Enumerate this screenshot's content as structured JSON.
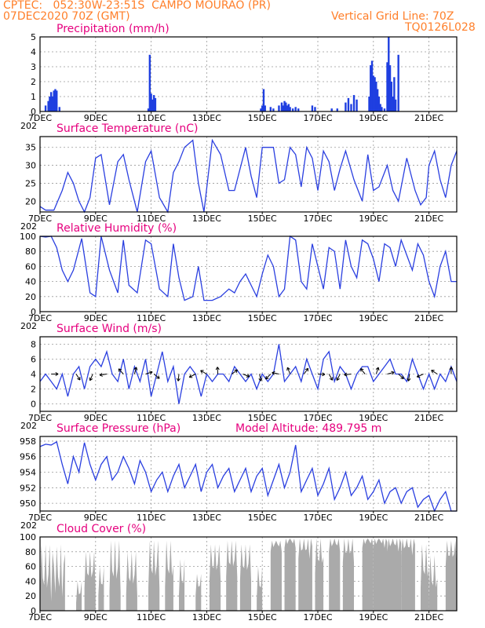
{
  "header": {
    "line1": "CPTEC:   052:30W-23:51S  CAMPO MOURAO (PR)",
    "line2_left": "07DEC2020 70Z (GMT)",
    "line2_right": "Vertical Grid Line: 70Z",
    "line3_right": "TQ0126L028"
  },
  "x_axis": {
    "labels": [
      "7DEC",
      "9DEC",
      "11DEC",
      "13DEC",
      "15DEC",
      "17DEC",
      "19DEC",
      "21DEC"
    ],
    "year_fragment": "202"
  },
  "chart_data": [
    {
      "type": "bar",
      "title": "Precipitation (mm/h)",
      "ylim": [
        0,
        5
      ],
      "yticks": [
        0,
        1,
        2,
        3,
        4,
        5
      ],
      "color": "#1f3fe0",
      "days": [
        7,
        22
      ],
      "x": [
        7.2,
        7.3,
        7.35,
        7.4,
        7.45,
        7.5,
        7.55,
        7.6,
        7.7,
        10.9,
        10.95,
        11.0,
        11.05,
        11.1,
        11.15,
        14.95,
        15.0,
        15.05,
        15.1,
        15.3,
        15.4,
        15.6,
        15.7,
        15.75,
        15.8,
        15.85,
        15.9,
        15.95,
        16.0,
        16.1,
        16.2,
        16.3,
        16.8,
        16.9,
        17.5,
        17.7,
        18.0,
        18.1,
        18.2,
        18.3,
        18.4,
        18.85,
        18.9,
        18.95,
        19.0,
        19.05,
        19.1,
        19.15,
        19.2,
        19.25,
        19.3,
        19.4,
        19.5,
        19.55,
        19.6,
        19.65,
        19.7,
        19.75,
        19.8,
        19.9
      ],
      "values": [
        0.4,
        0.7,
        1.0,
        1.3,
        1.0,
        1.4,
        1.5,
        1.4,
        0.3,
        0.2,
        3.8,
        1.2,
        0.8,
        1.1,
        0.9,
        0.2,
        0.4,
        1.5,
        0.4,
        0.3,
        0.2,
        0.4,
        0.6,
        0.4,
        0.7,
        0.6,
        0.4,
        0.5,
        0.3,
        0.2,
        0.3,
        0.2,
        0.4,
        0.3,
        0.2,
        0.2,
        0.6,
        0.9,
        0.5,
        1.1,
        0.8,
        1.0,
        3.1,
        3.4,
        2.4,
        2.3,
        2.0,
        1.5,
        1.0,
        0.5,
        0.3,
        0.2,
        3.3,
        5.0,
        3.1,
        2.0,
        1.0,
        2.3,
        0.8,
        3.8
      ]
    },
    {
      "type": "line",
      "title": "Surface Temperature (nC)",
      "ylim": [
        17,
        38
      ],
      "yticks": [
        20,
        25,
        30,
        35
      ],
      "color": "#2a3fe0",
      "x": [
        7.0,
        7.2,
        7.5,
        7.8,
        8.0,
        8.2,
        8.4,
        8.6,
        8.8,
        9.0,
        9.2,
        9.5,
        9.8,
        10.0,
        10.2,
        10.5,
        10.8,
        11.0,
        11.3,
        11.6,
        11.8,
        12.0,
        12.2,
        12.5,
        12.7,
        12.9,
        13.2,
        13.5,
        13.8,
        14.0,
        14.2,
        14.4,
        14.6,
        14.8,
        15.0,
        15.2,
        15.4,
        15.6,
        15.8,
        16.0,
        16.2,
        16.4,
        16.6,
        16.8,
        17.0,
        17.2,
        17.4,
        17.6,
        17.8,
        18.0,
        18.3,
        18.6,
        18.8,
        19.0,
        19.2,
        19.5,
        19.7,
        19.9,
        20.2,
        20.5,
        20.7,
        20.9,
        21.0,
        21.2,
        21.4,
        21.6,
        21.8,
        22.0
      ],
      "values": [
        18.5,
        17.5,
        17.5,
        23,
        28,
        25,
        20,
        17,
        21,
        32,
        33,
        19,
        31,
        33,
        26,
        17,
        31,
        34,
        21,
        17,
        28,
        31,
        35,
        37,
        25,
        17,
        37,
        33,
        23,
        23,
        29,
        35,
        27,
        21,
        35,
        35,
        35,
        25,
        26,
        35,
        33,
        24,
        35,
        32,
        23,
        34,
        31,
        23,
        29,
        34,
        26,
        20,
        33,
        23,
        24,
        30,
        23,
        20,
        32,
        23,
        19,
        21,
        30,
        34,
        26,
        21,
        30,
        34
      ]
    },
    {
      "type": "line",
      "title": "Relative Humidity (%)",
      "ylim": [
        0,
        100
      ],
      "yticks": [
        0,
        20,
        40,
        60,
        80,
        100
      ],
      "color": "#2a3fe0",
      "x": [
        7.0,
        7.2,
        7.4,
        7.6,
        7.8,
        8.0,
        8.2,
        8.5,
        8.8,
        9.0,
        9.2,
        9.5,
        9.8,
        10.0,
        10.2,
        10.5,
        10.8,
        11.0,
        11.3,
        11.6,
        11.8,
        12.0,
        12.2,
        12.5,
        12.7,
        12.9,
        13.2,
        13.5,
        13.8,
        14.0,
        14.2,
        14.4,
        14.6,
        14.8,
        15.0,
        15.2,
        15.4,
        15.6,
        15.8,
        16.0,
        16.2,
        16.4,
        16.6,
        16.8,
        17.0,
        17.2,
        17.4,
        17.6,
        17.8,
        18.0,
        18.2,
        18.4,
        18.6,
        18.8,
        19.0,
        19.2,
        19.4,
        19.6,
        19.8,
        20.0,
        20.2,
        20.4,
        20.6,
        20.8,
        21.0,
        21.2,
        21.4,
        21.6,
        21.8,
        22.0
      ],
      "values": [
        100,
        99,
        100,
        85,
        55,
        40,
        55,
        97,
        25,
        20,
        100,
        55,
        25,
        95,
        35,
        25,
        95,
        90,
        30,
        20,
        90,
        45,
        15,
        20,
        60,
        15,
        15,
        20,
        30,
        25,
        40,
        50,
        35,
        20,
        50,
        75,
        60,
        20,
        30,
        100,
        95,
        40,
        30,
        90,
        60,
        30,
        85,
        80,
        30,
        95,
        60,
        45,
        95,
        90,
        70,
        40,
        90,
        85,
        60,
        95,
        75,
        55,
        90,
        75,
        40,
        20,
        60,
        80,
        40,
        40
      ]
    },
    {
      "type": "line",
      "title": "Surface Wind (m/s)",
      "ylim": [
        -1,
        9
      ],
      "yticks": [
        0,
        2,
        4,
        6,
        8
      ],
      "color": "#2a3fe0",
      "x": [
        7.0,
        7.2,
        7.4,
        7.6,
        7.8,
        8.0,
        8.2,
        8.4,
        8.6,
        8.8,
        9.0,
        9.2,
        9.4,
        9.6,
        9.8,
        10.0,
        10.2,
        10.4,
        10.6,
        10.8,
        11.0,
        11.2,
        11.4,
        11.6,
        11.8,
        12.0,
        12.2,
        12.4,
        12.6,
        12.8,
        13.0,
        13.2,
        13.4,
        13.6,
        13.8,
        14.0,
        14.2,
        14.4,
        14.6,
        14.8,
        15.0,
        15.2,
        15.4,
        15.6,
        15.8,
        16.0,
        16.2,
        16.4,
        16.6,
        16.8,
        17.0,
        17.2,
        17.4,
        17.6,
        17.8,
        18.0,
        18.2,
        18.4,
        18.6,
        18.8,
        19.0,
        19.2,
        19.4,
        19.6,
        19.8,
        20.0,
        20.2,
        20.4,
        20.6,
        20.8,
        21.0,
        21.2,
        21.4,
        21.6,
        21.8,
        22.0
      ],
      "values": [
        3,
        4,
        3,
        2,
        4,
        1,
        4,
        5,
        2,
        5,
        6,
        5,
        7,
        4,
        3,
        6,
        2,
        5,
        3,
        6,
        1,
        4,
        7,
        3,
        5,
        0,
        4,
        5,
        4,
        1,
        4,
        3,
        4,
        4,
        3,
        5,
        4,
        3,
        4,
        2,
        4,
        3,
        4,
        8,
        3,
        4,
        5,
        3,
        6,
        4,
        2,
        6,
        7,
        3,
        5,
        4,
        2,
        4,
        5,
        5,
        3,
        4,
        5,
        6,
        4,
        4,
        3,
        6,
        4,
        2,
        4,
        2,
        4,
        3,
        5,
        3
      ]
    },
    {
      "type": "line",
      "title": "Surface Pressure (hPa)",
      "subtitle": "Model Altitude: 489.795  m",
      "ylim": [
        949,
        958.6
      ],
      "yticks": [
        950,
        952,
        954,
        956,
        958
      ],
      "color": "#2a3fe0",
      "x": [
        7.0,
        7.2,
        7.4,
        7.6,
        7.8,
        8.0,
        8.2,
        8.4,
        8.6,
        8.8,
        9.0,
        9.2,
        9.4,
        9.6,
        9.8,
        10.0,
        10.2,
        10.4,
        10.6,
        10.8,
        11.0,
        11.2,
        11.4,
        11.6,
        11.8,
        12.0,
        12.2,
        12.4,
        12.6,
        12.8,
        13.0,
        13.2,
        13.4,
        13.6,
        13.8,
        14.0,
        14.2,
        14.4,
        14.6,
        14.8,
        15.0,
        15.2,
        15.4,
        15.6,
        15.8,
        16.0,
        16.2,
        16.4,
        16.6,
        16.8,
        17.0,
        17.2,
        17.4,
        17.6,
        17.8,
        18.0,
        18.2,
        18.4,
        18.6,
        18.8,
        19.0,
        19.2,
        19.4,
        19.6,
        19.8,
        20.0,
        20.2,
        20.4,
        20.6,
        20.8,
        21.0,
        21.2,
        21.4,
        21.6,
        21.8,
        22.0
      ],
      "values": [
        957.3,
        957.6,
        957.5,
        957.9,
        955.0,
        952.5,
        956.0,
        954.0,
        957.8,
        955.0,
        953.0,
        955.0,
        956.0,
        953.0,
        954.0,
        956.0,
        954.5,
        952.5,
        955.5,
        954.0,
        951.5,
        953.0,
        954.0,
        951.5,
        953.5,
        955.0,
        952.0,
        953.5,
        955.0,
        951.5,
        954.0,
        955.0,
        952.0,
        953.5,
        954.5,
        951.5,
        953.0,
        954.5,
        951.5,
        953.5,
        954.5,
        951.0,
        953.0,
        955.0,
        952.0,
        954.0,
        957.5,
        951.5,
        953.0,
        954.5,
        951.0,
        952.5,
        954.5,
        950.5,
        952.0,
        954.0,
        951.0,
        952.0,
        953.5,
        950.5,
        951.5,
        953.0,
        950.0,
        951.5,
        952.0,
        950.0,
        951.5,
        952.0,
        949.5,
        950.5,
        951.0,
        949.0,
        950.5,
        951.5,
        949.0,
        949.0
      ]
    },
    {
      "type": "bar",
      "title": "Cloud Cover (%)",
      "ylim": [
        0,
        100
      ],
      "yticks": [
        0,
        20,
        40,
        60,
        80,
        100
      ],
      "color": "#aaaaaa",
      "days": [
        7,
        22
      ],
      "spans": [
        [
          7.0,
          7.9,
          90,
          12
        ],
        [
          8.3,
          8.5,
          40,
          10
        ],
        [
          8.6,
          9.0,
          80,
          30
        ],
        [
          9.1,
          9.3,
          60,
          20
        ],
        [
          9.5,
          9.9,
          95,
          25
        ],
        [
          10.1,
          10.5,
          80,
          20
        ],
        [
          10.9,
          11.3,
          95,
          30
        ],
        [
          11.5,
          11.8,
          95,
          30
        ],
        [
          12.0,
          12.2,
          70,
          20
        ],
        [
          12.6,
          12.8,
          50,
          20
        ],
        [
          13.1,
          13.5,
          90,
          40
        ],
        [
          13.7,
          14.1,
          95,
          45
        ],
        [
          14.2,
          14.6,
          90,
          40
        ],
        [
          14.8,
          15.0,
          60,
          15
        ],
        [
          15.3,
          15.7,
          95,
          80
        ],
        [
          15.8,
          16.2,
          98,
          85
        ],
        [
          16.3,
          16.8,
          98,
          70
        ],
        [
          16.9,
          17.2,
          98,
          50
        ],
        [
          17.4,
          17.8,
          98,
          80
        ],
        [
          17.9,
          18.3,
          98,
          65
        ],
        [
          18.6,
          19.0,
          98,
          85
        ],
        [
          19.0,
          19.5,
          98,
          85
        ],
        [
          19.5,
          20.0,
          98,
          80
        ],
        [
          20.0,
          20.5,
          98,
          75
        ],
        [
          20.7,
          21.0,
          90,
          30
        ],
        [
          21.0,
          21.3,
          75,
          15
        ],
        [
          21.6,
          22.0,
          95,
          60
        ]
      ]
    }
  ]
}
